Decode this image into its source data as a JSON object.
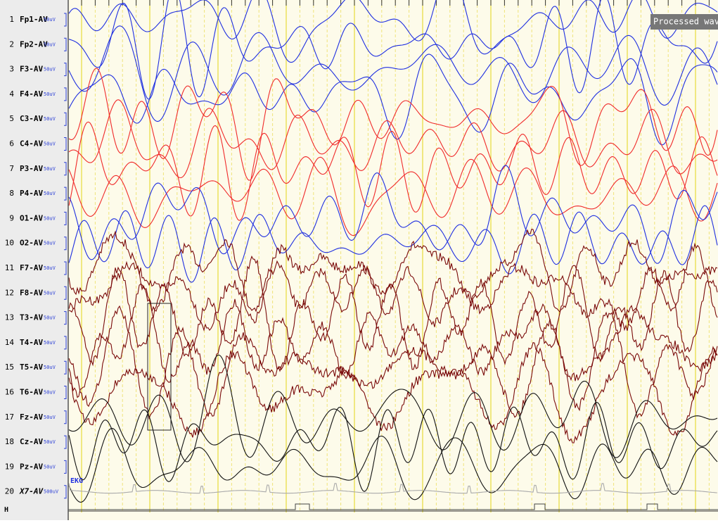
{
  "overlay_label": "Processed wav",
  "ekg_label": "EKG",
  "footer_label": "H",
  "channels": [
    {
      "number": "1",
      "label": "Fp1-AV",
      "scale": "50uV",
      "color": "#1f2fe0"
    },
    {
      "number": "2",
      "label": "Fp2-AV",
      "scale": "50uV",
      "color": "#1f2fe0"
    },
    {
      "number": "3",
      "label": "F3-AV",
      "scale": "50uV",
      "color": "#1f2fe0"
    },
    {
      "number": "4",
      "label": "F4-AV",
      "scale": "50uV",
      "color": "#1f2fe0"
    },
    {
      "number": "5",
      "label": "C3-AV",
      "scale": "50uV",
      "color": "#f02a2a"
    },
    {
      "number": "6",
      "label": "C4-AV",
      "scale": "50uV",
      "color": "#f02a2a"
    },
    {
      "number": "7",
      "label": "P3-AV",
      "scale": "50uV",
      "color": "#f02a2a"
    },
    {
      "number": "8",
      "label": "P4-AV",
      "scale": "50uV",
      "color": "#f02a2a"
    },
    {
      "number": "9",
      "label": "O1-AV",
      "scale": "50uV",
      "color": "#1f2fe0"
    },
    {
      "number": "10",
      "label": "O2-AV",
      "scale": "50uV",
      "color": "#1f2fe0"
    },
    {
      "number": "11",
      "label": "F7-AV",
      "scale": "50uV",
      "color": "#7a0a0a"
    },
    {
      "number": "12",
      "label": "F8-AV",
      "scale": "50uV",
      "color": "#7a0a0a"
    },
    {
      "number": "13",
      "label": "T3-AV",
      "scale": "50uV",
      "color": "#7a0a0a"
    },
    {
      "number": "14",
      "label": "T4-AV",
      "scale": "50uV",
      "color": "#7a0a0a"
    },
    {
      "number": "15",
      "label": "T5-AV",
      "scale": "50uV",
      "color": "#7a0a0a"
    },
    {
      "number": "16",
      "label": "T6-AV",
      "scale": "50uV",
      "color": "#7a0a0a"
    },
    {
      "number": "17",
      "label": "Fz-AV",
      "scale": "50uV",
      "color": "#111111"
    },
    {
      "number": "18",
      "label": "Cz-AV",
      "scale": "50uV",
      "color": "#111111"
    },
    {
      "number": "19",
      "label": "Pz-AV",
      "scale": "50uV",
      "color": "#111111"
    },
    {
      "number": "20",
      "label": "X7-AV",
      "scale": "500uV",
      "color": "#aaaaaa"
    }
  ]
}
